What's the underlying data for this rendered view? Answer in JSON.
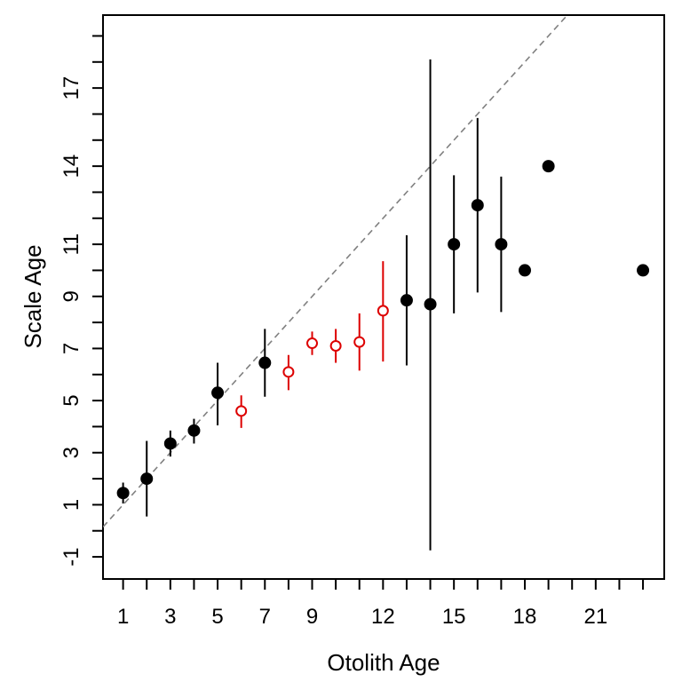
{
  "chart_data": {
    "type": "scatter",
    "title": "",
    "xlabel": "Otolith Age",
    "ylabel": "Scale Age",
    "xlim": [
      0.15,
      23.9
    ],
    "ylim": [
      -1.85,
      19.8
    ],
    "x_ticks": [
      1,
      2,
      3,
      4,
      5,
      6,
      7,
      8,
      9,
      10,
      11,
      12,
      13,
      14,
      15,
      16,
      17,
      18,
      19,
      20,
      21,
      22,
      23
    ],
    "x_tick_labels": [
      "1",
      "3",
      "5",
      "7",
      "9",
      "12",
      "15",
      "18",
      "21"
    ],
    "y_ticks": [
      -1,
      0,
      1,
      2,
      3,
      4,
      5,
      6,
      7,
      8,
      9,
      10,
      11,
      12,
      13,
      14,
      15,
      16,
      17,
      18,
      19
    ],
    "y_tick_labels": [
      "-1",
      "1",
      "3",
      "5",
      "7",
      "9",
      "11",
      "14",
      "17"
    ],
    "reference_line": {
      "slope": 1,
      "intercept": 0,
      "style": "dashed",
      "color": "#808080"
    },
    "grid": false,
    "legend": "none",
    "colors": {
      "filled": "#000000",
      "open": "#dd0000"
    },
    "points": [
      {
        "x": 1,
        "y": 1.45,
        "lo": 1.05,
        "hi": 1.85,
        "style": "filled"
      },
      {
        "x": 2,
        "y": 2.0,
        "lo": 0.55,
        "hi": 3.45,
        "style": "filled"
      },
      {
        "x": 3,
        "y": 3.35,
        "lo": 2.85,
        "hi": 3.85,
        "style": "filled"
      },
      {
        "x": 4,
        "y": 3.85,
        "lo": 3.35,
        "hi": 4.3,
        "style": "filled"
      },
      {
        "x": 5,
        "y": 5.3,
        "lo": 4.05,
        "hi": 6.45,
        "style": "filled"
      },
      {
        "x": 6,
        "y": 4.6,
        "lo": 3.95,
        "hi": 5.2,
        "style": "open"
      },
      {
        "x": 7,
        "y": 6.45,
        "lo": 5.15,
        "hi": 7.75,
        "style": "filled"
      },
      {
        "x": 8,
        "y": 6.1,
        "lo": 5.4,
        "hi": 6.75,
        "style": "open"
      },
      {
        "x": 9,
        "y": 7.2,
        "lo": 6.75,
        "hi": 7.65,
        "style": "open"
      },
      {
        "x": 10,
        "y": 7.1,
        "lo": 6.45,
        "hi": 7.75,
        "style": "open"
      },
      {
        "x": 11,
        "y": 7.25,
        "lo": 6.15,
        "hi": 8.35,
        "style": "open"
      },
      {
        "x": 12,
        "y": 8.45,
        "lo": 6.5,
        "hi": 10.35,
        "style": "open"
      },
      {
        "x": 13,
        "y": 8.85,
        "lo": 6.35,
        "hi": 11.35,
        "style": "filled"
      },
      {
        "x": 14,
        "y": 8.7,
        "lo": -0.75,
        "hi": 18.1,
        "style": "filled"
      },
      {
        "x": 15,
        "y": 11.0,
        "lo": 8.35,
        "hi": 13.65,
        "style": "filled"
      },
      {
        "x": 16,
        "y": 12.5,
        "lo": 9.15,
        "hi": 15.85,
        "style": "filled"
      },
      {
        "x": 17,
        "y": 11.0,
        "lo": 8.4,
        "hi": 13.6,
        "style": "filled"
      },
      {
        "x": 18,
        "y": 10.0,
        "lo": null,
        "hi": null,
        "style": "filled"
      },
      {
        "x": 19,
        "y": 14.0,
        "lo": null,
        "hi": null,
        "style": "filled"
      },
      {
        "x": 23,
        "y": 10.0,
        "lo": null,
        "hi": null,
        "style": "filled"
      }
    ]
  }
}
